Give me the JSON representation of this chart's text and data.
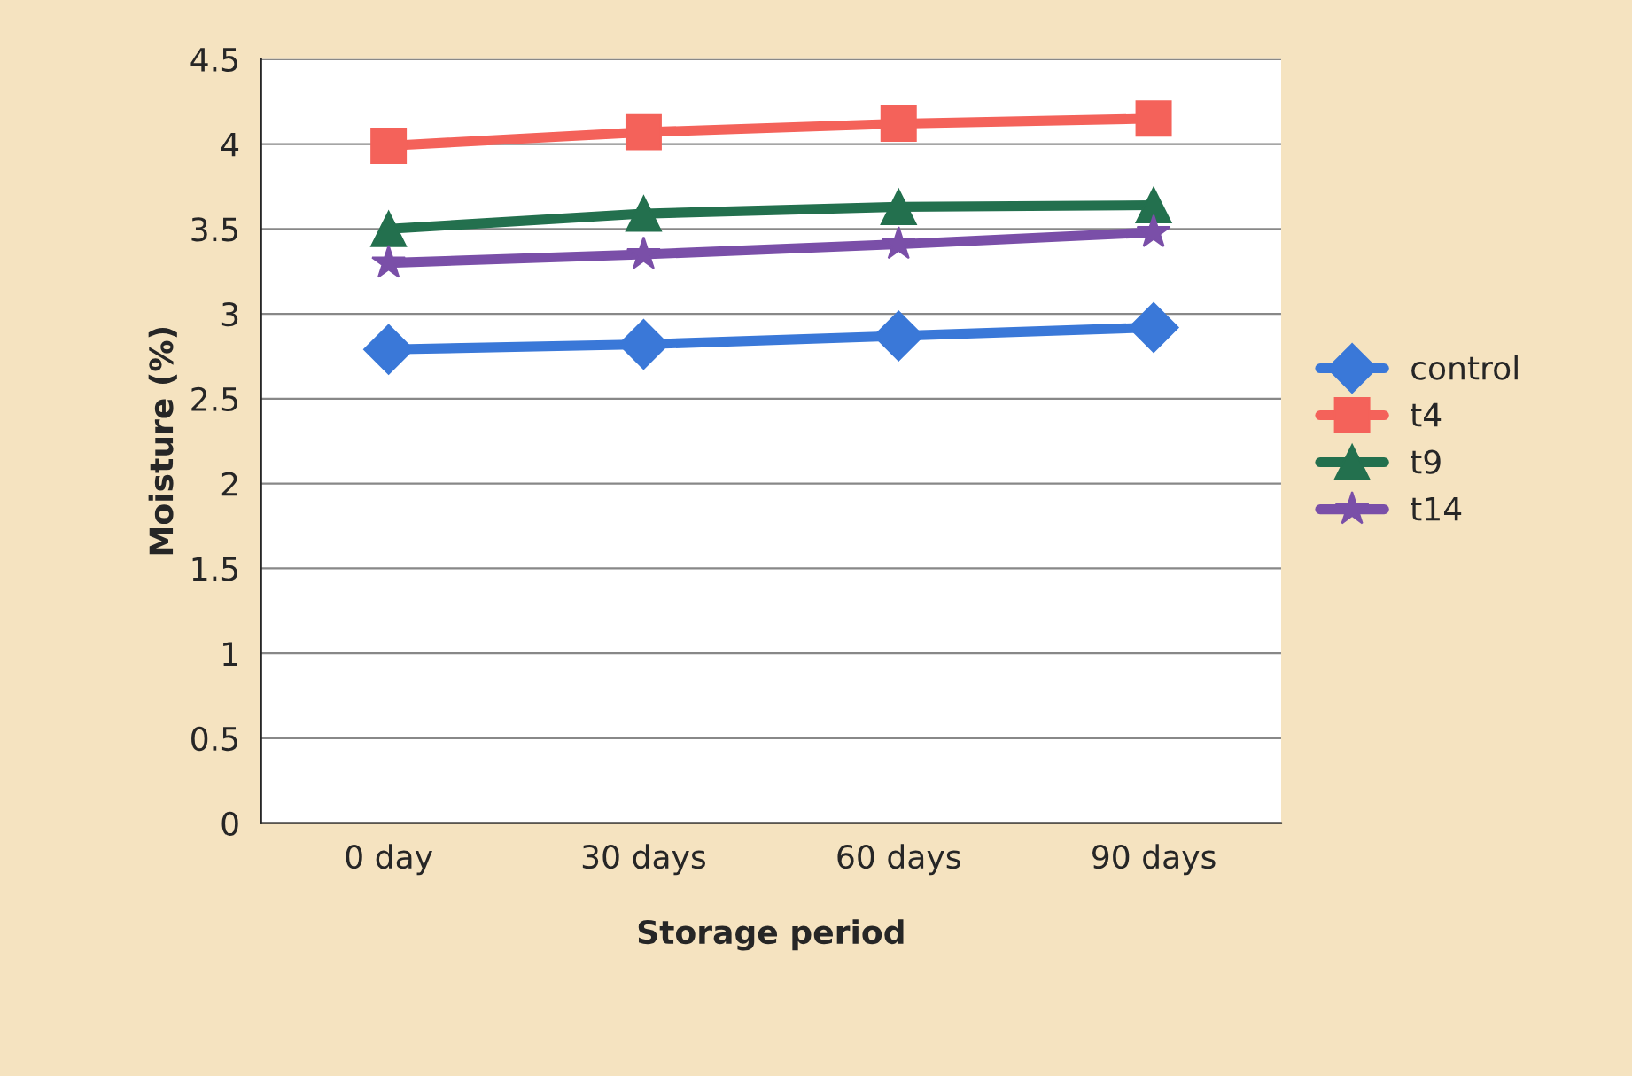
{
  "chart_data": {
    "type": "line",
    "xlabel": "Storage period",
    "ylabel": "Moisture (%)",
    "categories": [
      "0 day",
      "30 days",
      "60 days",
      "90 days"
    ],
    "series": [
      {
        "name": "control",
        "color": "#3a78d8",
        "marker": "diamond",
        "values": [
          2.79,
          2.82,
          2.87,
          2.92
        ]
      },
      {
        "name": "t4",
        "color": "#f4625a",
        "marker": "square",
        "values": [
          3.99,
          4.07,
          4.12,
          4.15
        ]
      },
      {
        "name": "t9",
        "color": "#23704e",
        "marker": "triangle",
        "values": [
          3.5,
          3.59,
          3.63,
          3.64
        ]
      },
      {
        "name": "t14",
        "color": "#7a4fa8",
        "marker": "star",
        "values": [
          3.3,
          3.35,
          3.41,
          3.48
        ]
      }
    ],
    "ylim": [
      0,
      4.5
    ],
    "yticks": [
      0,
      0.5,
      1,
      1.5,
      2,
      2.5,
      3,
      3.5,
      4,
      4.5
    ],
    "grid": "y",
    "legend": "right",
    "line_style": "solid"
  }
}
